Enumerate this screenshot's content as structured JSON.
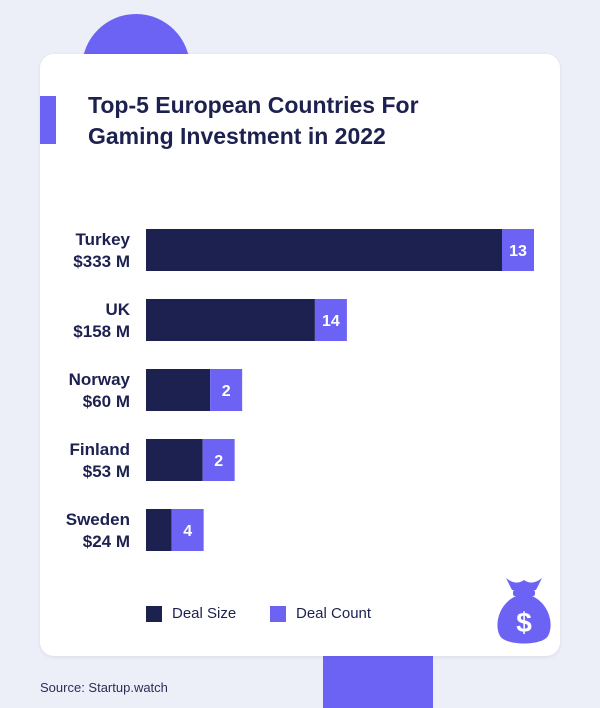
{
  "colors": {
    "background": "#eceef8",
    "deal_size": "#1c2150",
    "deal_count": "#6c63f5",
    "text": "#1c2150"
  },
  "title_lines": [
    "Top-5 European Countries For",
    "Gaming Investment in 2022"
  ],
  "legend": {
    "deal_size": "Deal Size",
    "deal_count": "Deal Count"
  },
  "source": "Source: Startup.watch",
  "icons": {
    "money_bag": "money-bag-icon",
    "currency_glyph": "$"
  },
  "chart_data": {
    "type": "bar",
    "orientation": "horizontal",
    "stacked": true,
    "title": "Top-5 European Countries For Gaming Investment in 2022",
    "categories": [
      "Turkey",
      "UK",
      "Norway",
      "Finland",
      "Sweden"
    ],
    "category_labels": [
      [
        "Turkey",
        "$333 M"
      ],
      [
        "UK",
        "$158 M"
      ],
      [
        "Norway",
        "$60 M"
      ],
      [
        "Finland",
        "$53 M"
      ],
      [
        "Sweden",
        "$24 M"
      ]
    ],
    "series": [
      {
        "name": "Deal Size",
        "values": [
          333,
          158,
          60,
          53,
          24
        ]
      },
      {
        "name": "Deal Count",
        "values": [
          13,
          14,
          2,
          2,
          4
        ]
      }
    ],
    "grid": false,
    "legend_position": "bottom"
  }
}
